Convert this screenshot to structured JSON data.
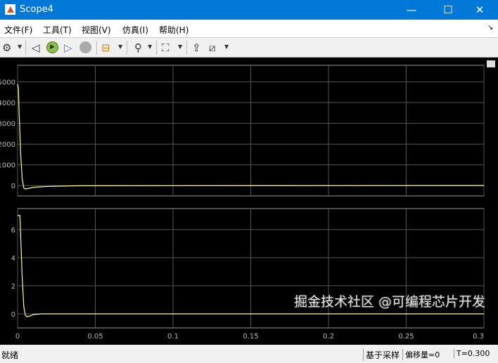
{
  "window": {
    "title": "Scope4",
    "icon": "matlab-logo-icon",
    "controls": [
      "minimize",
      "maximize",
      "close"
    ]
  },
  "menu": {
    "items": [
      "文件(F)",
      "工具(T)",
      "视图(V)",
      "仿真(I)",
      "帮助(H)"
    ]
  },
  "toolbar": {
    "icons": [
      "settings-gear-icon",
      "step-back-icon",
      "run-icon",
      "step-forward-icon",
      "stop-icon",
      "signal-selector-icon",
      "cursor-measure-icon",
      "zoom-fit-icon",
      "style-icon",
      "highlight-icon"
    ]
  },
  "status": {
    "left": "就绪",
    "sampling": "基于采样",
    "offset": "偏移量=0",
    "time": "T=0.300"
  },
  "watermark": "掘金技术社区 @可编程芯片开发",
  "colors": {
    "background": "#000000",
    "trace": "#ffff99",
    "grid": "#555555",
    "titlebar": "#0078d7"
  },
  "chart_data": [
    {
      "type": "line",
      "xlim": [
        0,
        0.3
      ],
      "ylim": [
        -500,
        5800
      ],
      "yticks": [
        0,
        1000,
        2000,
        3000,
        4000,
        5000
      ],
      "xticks": [
        0,
        0.05,
        0.1,
        0.15,
        0.2,
        0.25,
        0.3
      ],
      "show_xtick_labels": false,
      "grid": true,
      "series": [
        {
          "x": [
            0,
            0.0005,
            0.001,
            0.002,
            0.003,
            0.004,
            0.005,
            0.007,
            0.01,
            0.015,
            0.02,
            0.04,
            0.3
          ],
          "y": [
            4900,
            4700,
            3500,
            1500,
            300,
            -120,
            -160,
            -140,
            -90,
            -60,
            -40,
            -10,
            0
          ]
        }
      ]
    },
    {
      "type": "line",
      "xlim": [
        0,
        0.3
      ],
      "ylim": [
        -1,
        7.5
      ],
      "yticks": [
        0,
        2,
        4,
        6
      ],
      "xticks": [
        0,
        0.05,
        0.1,
        0.15,
        0.2,
        0.25,
        0.3
      ],
      "xtick_labels": [
        "0",
        "0.05",
        "0.1",
        "0.15",
        "0.2",
        "0.25",
        "0.3"
      ],
      "grid": true,
      "series": [
        {
          "x": [
            0,
            0.0015,
            0.002,
            0.003,
            0.004,
            0.005,
            0.006,
            0.008,
            0.01,
            0.015,
            0.02,
            0.3
          ],
          "y": [
            7,
            7,
            5.5,
            2.5,
            0.5,
            -0.1,
            -0.2,
            -0.15,
            -0.05,
            0,
            0,
            0
          ]
        }
      ]
    }
  ]
}
